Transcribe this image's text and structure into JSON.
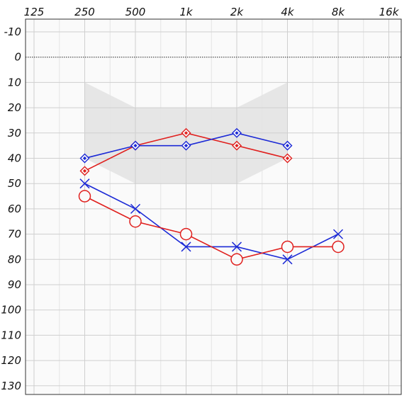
{
  "chart_data": {
    "type": "line",
    "title": "",
    "xlabel": "",
    "ylabel": "",
    "x_scale": "log2",
    "x_ticks": [
      125,
      250,
      500,
      1000,
      2000,
      4000,
      8000,
      16000
    ],
    "x_tick_labels": [
      "125",
      "250",
      "500",
      "1k",
      "2k",
      "4k",
      "8k",
      "16k"
    ],
    "y_ticks": [
      -10,
      0,
      10,
      20,
      30,
      40,
      50,
      60,
      70,
      80,
      90,
      100,
      110,
      120,
      130
    ],
    "y_tick_labels": [
      "-10",
      "0",
      "10",
      "20",
      "30",
      "40",
      "50",
      "60",
      "70",
      "80",
      "90",
      "100",
      "110",
      "120",
      "130"
    ],
    "xlim": [
      125,
      16000
    ],
    "ylim": [
      -15,
      135
    ],
    "y_inverted": true,
    "grid": true,
    "reference_line_y": 0,
    "shaded_region": {
      "x": [
        250,
        500,
        2000,
        4000,
        4000,
        2000,
        500,
        250
      ],
      "y": [
        10,
        20,
        20,
        10,
        40,
        50,
        50,
        40
      ]
    },
    "series": [
      {
        "marker": "diamond-dot",
        "color": "#e0201e",
        "x": [
          250,
          500,
          1000,
          2000,
          4000
        ],
        "y": [
          45,
          35,
          30,
          35,
          40
        ]
      },
      {
        "marker": "diamond-dot",
        "color": "#1c2ad6",
        "x": [
          250,
          500,
          1000,
          2000,
          4000
        ],
        "y": [
          40,
          35,
          35,
          30,
          35
        ]
      },
      {
        "marker": "cross",
        "color": "#1c2ad6",
        "x": [
          250,
          500,
          1000,
          2000,
          4000,
          8000
        ],
        "y": [
          50,
          60,
          75,
          75,
          80,
          70
        ]
      },
      {
        "marker": "circle",
        "color": "#e0201e",
        "x": [
          250,
          500,
          1000,
          2000,
          4000,
          8000
        ],
        "y": [
          55,
          65,
          70,
          80,
          75,
          75
        ]
      }
    ]
  }
}
